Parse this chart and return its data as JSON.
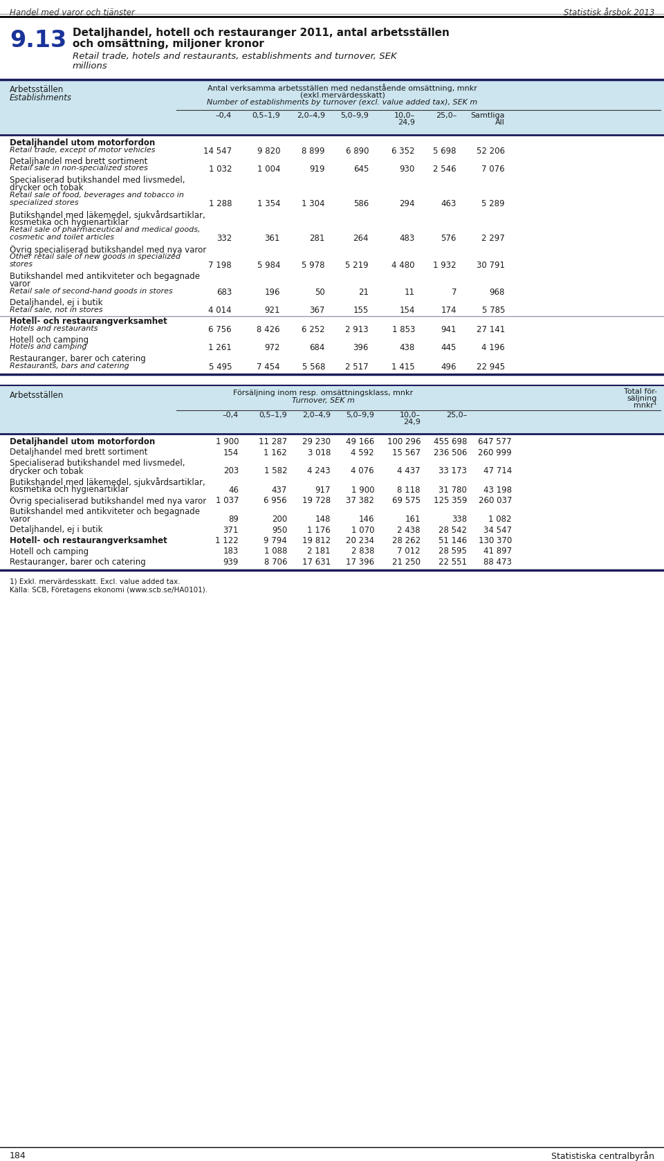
{
  "page_header_left": "Handel med varor och tjänster",
  "page_header_right": "Statistisk årsbok 2013",
  "section_num": "9.13",
  "title_bold_l1": "Detaljhandel, hotell och restauranger 2011, antal arbetsställen",
  "title_bold_l2": "och omsättning, miljoner kronor",
  "title_italic_l1": "Retail trade, hotels and restaurants, establishments and turnover, SEK",
  "title_italic_l2": "millions",
  "t1_hdr_left_l1": "Arbetsställen",
  "t1_hdr_left_l2": "Establishments",
  "t1_hdr_c1": "Antal verksamma arbetsställen med nedanstående omsättning, mnkr",
  "t1_hdr_c2": "(exkl.mervärdesskatt)",
  "t1_hdr_c3": "Number of establishments by turnover (excl. value added tax), SEK m",
  "t1_cols": [
    "–0,4",
    "0,5–1,9",
    "2,0–4,9",
    "5,0–9,9",
    "10,0–\n24,9",
    "25,0–",
    "Samtliga\nAll"
  ],
  "t1_rows": [
    {
      "sv": "Detaljhandel utom motorfordon",
      "en": "Retail trade, except of motor vehicles",
      "vals": [
        "14 547",
        "9 820",
        "8 899",
        "6 890",
        "6 352",
        "5 698",
        "52 206"
      ],
      "bold": true,
      "sep": false
    },
    {
      "sv": "Detaljhandel med brett sortiment",
      "en": "Retail sale in non-specialized stores",
      "vals": [
        "1 032",
        "1 004",
        "919",
        "645",
        "930",
        "2 546",
        "7 076"
      ],
      "bold": false,
      "sep": false
    },
    {
      "sv": "Specialiserad butikshandel med livsmedel,",
      "sv2": "drycker och tobak",
      "en": "Retail sale of food, beverages and tobacco in",
      "en2": "specialized stores",
      "vals": [
        "1 288",
        "1 354",
        "1 304",
        "586",
        "294",
        "463",
        "5 289"
      ],
      "bold": false,
      "sep": false
    },
    {
      "sv": "Butikshandel med läkemedel, sjukvårdsartiklar,",
      "sv2": "kosmetika och hygienartiklar",
      "en": "Retail sale of pharmaceutical and medical goods,",
      "en2": "cosmetic and toilet articles",
      "vals": [
        "332",
        "361",
        "281",
        "264",
        "483",
        "576",
        "2 297"
      ],
      "bold": false,
      "sep": false
    },
    {
      "sv": "Övrig specialiserad butikshandel med nya varor",
      "sv2": "",
      "en": "Other retail sale of new goods in specialized",
      "en2": "stores",
      "vals": [
        "7 198",
        "5 984",
        "5 978",
        "5 219",
        "4 480",
        "1 932",
        "30 791"
      ],
      "bold": false,
      "sep": false
    },
    {
      "sv": "Butikshandel med antikviteter och begagnade",
      "sv2": "varor",
      "en": "Retail sale of second-hand goods in stores",
      "en2": "",
      "vals": [
        "683",
        "196",
        "50",
        "21",
        "11",
        "7",
        "968"
      ],
      "bold": false,
      "sep": false
    },
    {
      "sv": "Detaljhandel, ej i butik",
      "sv2": "",
      "en": "Retail sale, not in stores",
      "en2": "",
      "vals": [
        "4 014",
        "921",
        "367",
        "155",
        "154",
        "174",
        "5 785"
      ],
      "bold": false,
      "sep": true
    },
    {
      "sv": "Hotell- och restaurangverksamhet",
      "sv2": "",
      "en": "Hotels and restaurants",
      "en2": "",
      "vals": [
        "6 756",
        "8 426",
        "6 252",
        "2 913",
        "1 853",
        "941",
        "27 141"
      ],
      "bold": true,
      "sep": false
    },
    {
      "sv": "Hotell och camping",
      "sv2": "",
      "en": "Hotels and camping",
      "en2": "",
      "vals": [
        "1 261",
        "972",
        "684",
        "396",
        "438",
        "445",
        "4 196"
      ],
      "bold": false,
      "sep": false
    },
    {
      "sv": "Restauranger, barer och catering",
      "sv2": "",
      "en": "Restaurants, bars and catering",
      "en2": "",
      "vals": [
        "5 495",
        "7 454",
        "5 568",
        "2 517",
        "1 415",
        "496",
        "22 945"
      ],
      "bold": false,
      "sep": false
    }
  ],
  "t2_hdr_left": "Arbetsställen",
  "t2_hdr_c1": "Försäljning inom resp. omsättningsklass, mnkr",
  "t2_hdr_c2": "Turnover, SEK m",
  "t2_hdr_r1": "Total för-",
  "t2_hdr_r2": "säljning",
  "t2_hdr_r3": "mnkr¹",
  "t2_cols": [
    "–0,4",
    "0,5–1,9",
    "2,0–4,9",
    "5,0–9,9",
    "10,0–\n24,9",
    "25,0–"
  ],
  "t2_rows": [
    {
      "sv": "Detaljhandel utom motorfordon",
      "sv2": "",
      "vals": [
        "1 900",
        "11 287",
        "29 230",
        "49 166",
        "100 296",
        "455 698",
        "647 577"
      ],
      "bold": true
    },
    {
      "sv": "Detaljhandel med brett sortiment",
      "sv2": "",
      "vals": [
        "154",
        "1 162",
        "3 018",
        "4 592",
        "15 567",
        "236 506",
        "260 999"
      ],
      "bold": false
    },
    {
      "sv": "Specialiserad butikshandel med livsmedel,",
      "sv2": "drycker och tobak",
      "vals": [
        "203",
        "1 582",
        "4 243",
        "4 076",
        "4 437",
        "33 173",
        "47 714"
      ],
      "bold": false
    },
    {
      "sv": "Butikshandel med läkemedel, sjukvårdsartiklar,",
      "sv2": "kosmetika och hygienartiklar",
      "vals": [
        "46",
        "437",
        "917",
        "1 900",
        "8 118",
        "31 780",
        "43 198"
      ],
      "bold": false
    },
    {
      "sv": "Övrig specialiserad butikshandel med nya varor",
      "sv2": "",
      "vals": [
        "1 037",
        "6 956",
        "19 728",
        "37 382",
        "69 575",
        "125 359",
        "260 037"
      ],
      "bold": false
    },
    {
      "sv": "Butikshandel med antikviteter och begagnade",
      "sv2": "varor",
      "vals": [
        "89",
        "200",
        "148",
        "146",
        "161",
        "338",
        "1 082"
      ],
      "bold": false
    },
    {
      "sv": "Detaljhandel, ej i butik",
      "sv2": "",
      "vals": [
        "371",
        "950",
        "1 176",
        "1 070",
        "2 438",
        "28 542",
        "34 547"
      ],
      "bold": false
    },
    {
      "sv": "Hotell- och restaurangverksamhet",
      "sv2": "",
      "vals": [
        "1 122",
        "9 794",
        "19 812",
        "20 234",
        "28 262",
        "51 146",
        "130 370"
      ],
      "bold": true
    },
    {
      "sv": "Hotell och camping",
      "sv2": "",
      "vals": [
        "183",
        "1 088",
        "2 181",
        "2 838",
        "7 012",
        "28 595",
        "41 897"
      ],
      "bold": false
    },
    {
      "sv": "Restauranger, barer och catering",
      "sv2": "",
      "vals": [
        "939",
        "8 706",
        "17 631",
        "17 396",
        "21 250",
        "22 551",
        "88 473"
      ],
      "bold": false
    }
  ],
  "fn1": "1) Exkl. mervärdesskatt. Excl. value added tax.",
  "fn2": "Källa: SCB, Företagens ekonomi (www.scb.se/HA0101).",
  "page_num": "184",
  "page_footer_right": "Statistiska centralbyrån",
  "bg": "#ffffff",
  "hdr_bg": "#cce5ef",
  "dark_line": "#1a1a5a",
  "sep_line": "#9090b0",
  "num_color": "#1a3399"
}
